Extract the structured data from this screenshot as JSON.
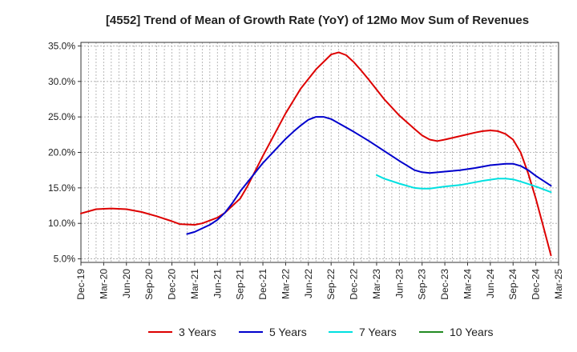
{
  "chart_data": {
    "type": "line",
    "title": "[4552]  Trend of Mean of Growth Rate (YoY) of 12Mo Mov Sum of Revenues",
    "xlabel": "",
    "ylabel": "",
    "ylim": [
      4.5,
      35.5
    ],
    "y_ticks": [
      5,
      10,
      15,
      20,
      25,
      30,
      35
    ],
    "y_tick_labels": [
      "5.0%",
      "10.0%",
      "15.0%",
      "20.0%",
      "25.0%",
      "30.0%",
      "35.0%"
    ],
    "x_tick_labels": [
      "Dec-19",
      "Mar-20",
      "Jun-20",
      "Sep-20",
      "Dec-20",
      "Mar-21",
      "Jun-21",
      "Sep-21",
      "Dec-21",
      "Mar-22",
      "Jun-22",
      "Sep-22",
      "Dec-22",
      "Mar-23",
      "Jun-23",
      "Sep-23",
      "Dec-23",
      "Mar-24",
      "Jun-24",
      "Sep-24",
      "Dec-24",
      "Mar-25"
    ],
    "x_start": "Dec-19",
    "x_unit": "months since Dec-19",
    "x_max": 63,
    "grid": true,
    "legend_position": "bottom",
    "series": [
      {
        "name": "3 Years",
        "color": "#dd0000",
        "points": [
          [
            0,
            11.4
          ],
          [
            2,
            12.0
          ],
          [
            4,
            12.1
          ],
          [
            6,
            12.0
          ],
          [
            8,
            11.6
          ],
          [
            10,
            11.0
          ],
          [
            12,
            10.3
          ],
          [
            13,
            9.9
          ],
          [
            15,
            9.8
          ],
          [
            16,
            10.0
          ],
          [
            18,
            10.8
          ],
          [
            19,
            11.5
          ],
          [
            21,
            13.5
          ],
          [
            22,
            15.3
          ],
          [
            24,
            19.5
          ],
          [
            27,
            25.5
          ],
          [
            29,
            29.0
          ],
          [
            31,
            31.7
          ],
          [
            33,
            33.8
          ],
          [
            34,
            34.1
          ],
          [
            35,
            33.7
          ],
          [
            36,
            32.7
          ],
          [
            37,
            31.5
          ],
          [
            38,
            30.2
          ],
          [
            40,
            27.5
          ],
          [
            42,
            25.2
          ],
          [
            44,
            23.3
          ],
          [
            45,
            22.4
          ],
          [
            46,
            21.8
          ],
          [
            47,
            21.6
          ],
          [
            48,
            21.8
          ],
          [
            50,
            22.3
          ],
          [
            52,
            22.8
          ],
          [
            53,
            23.0
          ],
          [
            54,
            23.1
          ],
          [
            55,
            23.0
          ],
          [
            56,
            22.6
          ],
          [
            57,
            21.8
          ],
          [
            58,
            20.0
          ],
          [
            59,
            17.0
          ],
          [
            60,
            13.5
          ],
          [
            61,
            9.5
          ],
          [
            62,
            5.5
          ]
        ]
      },
      {
        "name": "5 Years",
        "color": "#0000cc",
        "points": [
          [
            14,
            8.5
          ],
          [
            15,
            8.8
          ],
          [
            16,
            9.3
          ],
          [
            17,
            9.8
          ],
          [
            18,
            10.5
          ],
          [
            19,
            11.5
          ],
          [
            20,
            12.9
          ],
          [
            21,
            14.5
          ],
          [
            24,
            18.5
          ],
          [
            27,
            21.9
          ],
          [
            28,
            22.9
          ],
          [
            29,
            23.8
          ],
          [
            30,
            24.6
          ],
          [
            31,
            25.0
          ],
          [
            32,
            25.0
          ],
          [
            33,
            24.7
          ],
          [
            34,
            24.1
          ],
          [
            36,
            22.9
          ],
          [
            38,
            21.6
          ],
          [
            40,
            20.2
          ],
          [
            42,
            18.8
          ],
          [
            44,
            17.5
          ],
          [
            45,
            17.2
          ],
          [
            46,
            17.1
          ],
          [
            48,
            17.3
          ],
          [
            50,
            17.5
          ],
          [
            52,
            17.8
          ],
          [
            54,
            18.2
          ],
          [
            56,
            18.4
          ],
          [
            57,
            18.4
          ],
          [
            58,
            18.1
          ],
          [
            59,
            17.5
          ],
          [
            60,
            16.7
          ],
          [
            62,
            15.3
          ]
        ]
      },
      {
        "name": "7 Years",
        "color": "#00e0e0",
        "points": [
          [
            39,
            16.8
          ],
          [
            40,
            16.3
          ],
          [
            42,
            15.6
          ],
          [
            44,
            15.0
          ],
          [
            45,
            14.9
          ],
          [
            46,
            14.9
          ],
          [
            48,
            15.2
          ],
          [
            50,
            15.4
          ],
          [
            52,
            15.8
          ],
          [
            53,
            16.0
          ],
          [
            55,
            16.3
          ],
          [
            56,
            16.3
          ],
          [
            57,
            16.2
          ],
          [
            58,
            15.9
          ],
          [
            60,
            15.2
          ],
          [
            62,
            14.4
          ]
        ]
      },
      {
        "name": "10 Years",
        "color": "#228b22",
        "points": []
      }
    ]
  }
}
